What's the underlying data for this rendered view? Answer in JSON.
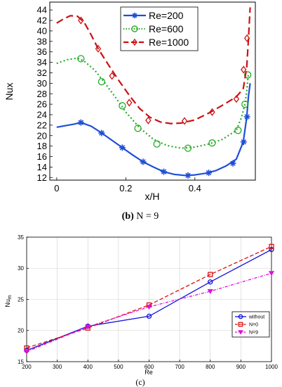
{
  "chart_data": [
    {
      "type": "line",
      "xlabel": "x/H",
      "ylabel": "Nux",
      "xlim": [
        -0.02,
        0.575
      ],
      "ylim": [
        11.5,
        45.5
      ],
      "xticks": [
        0,
        0.2,
        0.4
      ],
      "xtick_labels": [
        "0",
        "0.2",
        "0.4"
      ],
      "yticks": [
        12,
        14,
        16,
        18,
        20,
        22,
        24,
        26,
        28,
        30,
        32,
        34,
        36,
        38,
        40,
        42,
        44
      ],
      "ytick_labels": [
        "12",
        "14",
        "16",
        "18",
        "20",
        "22",
        "24",
        "26",
        "28",
        "30",
        "32",
        "34",
        "36",
        "38",
        "40",
        "42",
        "44"
      ],
      "legend_position": "top-right",
      "caption_prefix": "(b)",
      "caption_rest": " N = 9",
      "series": [
        {
          "name": "Re=200",
          "color": "#1f4fd8",
          "dash": "solid",
          "marker": "star",
          "x": [
            0.0,
            0.05,
            0.07,
            0.1,
            0.13,
            0.16,
            0.19,
            0.22,
            0.25,
            0.28,
            0.31,
            0.34,
            0.37,
            0.4,
            0.43,
            0.46,
            0.49,
            0.52,
            0.54,
            0.55,
            0.555,
            0.56
          ],
          "y": [
            21.6,
            22.2,
            22.5,
            21.8,
            20.5,
            19.1,
            17.7,
            16.3,
            15.0,
            14.0,
            13.1,
            12.6,
            12.4,
            12.5,
            12.8,
            13.3,
            14.2,
            15.5,
            18.8,
            23.5,
            27.5,
            30.0
          ],
          "marker_x": [
            0.07,
            0.13,
            0.19,
            0.25,
            0.31,
            0.38,
            0.44,
            0.51,
            0.541,
            0.551
          ],
          "marker_y": [
            22.5,
            20.5,
            17.7,
            15.0,
            13.1,
            12.4,
            12.9,
            14.7,
            18.8,
            23.6
          ]
        },
        {
          "name": "Re=600",
          "color": "#22aa22",
          "dash": "dotted",
          "marker": "circle",
          "x": [
            0.0,
            0.03,
            0.06,
            0.08,
            0.11,
            0.14,
            0.17,
            0.2,
            0.24,
            0.28,
            0.32,
            0.36,
            0.4,
            0.44,
            0.48,
            0.52,
            0.535,
            0.545,
            0.55,
            0.555
          ],
          "y": [
            33.8,
            34.5,
            34.8,
            34.2,
            32.5,
            30.0,
            27.3,
            24.5,
            21.5,
            19.3,
            18.1,
            17.6,
            17.8,
            18.4,
            19.3,
            21.0,
            23.5,
            26.0,
            28.5,
            32.0
          ],
          "marker_x": [
            0.07,
            0.13,
            0.19,
            0.235,
            0.29,
            0.38,
            0.45,
            0.525,
            0.545,
            0.553
          ],
          "marker_y": [
            34.7,
            30.3,
            25.7,
            21.4,
            18.4,
            17.6,
            18.6,
            21.0,
            26.0,
            31.6
          ]
        },
        {
          "name": "Re=1000",
          "color": "#cc1111",
          "dash": "dashed",
          "marker": "diamond",
          "x": [
            0.0,
            0.02,
            0.04,
            0.06,
            0.08,
            0.1,
            0.12,
            0.15,
            0.18,
            0.21,
            0.24,
            0.27,
            0.3,
            0.33,
            0.36,
            0.4,
            0.44,
            0.48,
            0.52,
            0.54,
            0.55,
            0.555,
            0.56
          ],
          "y": [
            41.5,
            42.3,
            42.9,
            42.8,
            41.6,
            39.2,
            36.6,
            33.5,
            30.5,
            27.7,
            25.2,
            23.5,
            22.6,
            22.3,
            22.4,
            23.0,
            24.3,
            25.8,
            27.4,
            29.0,
            33.0,
            38.5,
            44.5
          ],
          "marker_x": [
            0.07,
            0.12,
            0.16,
            0.21,
            0.265,
            0.37,
            0.45,
            0.52,
            0.541,
            0.551
          ],
          "marker_y": [
            42.0,
            36.6,
            31.4,
            26.3,
            22.9,
            22.8,
            24.5,
            27.0,
            32.6,
            38.6
          ]
        }
      ]
    },
    {
      "type": "line",
      "xlabel": "Re",
      "ylabel": "Nu",
      "ylabel_sub": "m",
      "xlim": [
        200,
        1000
      ],
      "ylim": [
        15,
        35
      ],
      "xticks": [
        200,
        300,
        400,
        500,
        600,
        700,
        800,
        900,
        1000
      ],
      "xtick_labels": [
        "200",
        "300",
        "400",
        "500",
        "600",
        "700",
        "800",
        "900",
        "1000"
      ],
      "yticks": [
        15,
        20,
        25,
        30,
        35
      ],
      "ytick_labels": [
        "15",
        "20",
        "25",
        "30",
        "35"
      ],
      "legend_position": "bottom-right",
      "caption": "(c)",
      "series": [
        {
          "name": "without",
          "color": "#1111dd",
          "dash": "solid",
          "marker": "circle",
          "x": [
            200,
            400,
            600,
            800,
            1000
          ],
          "y": [
            16.8,
            20.7,
            22.3,
            27.8,
            33.0
          ]
        },
        {
          "name": "N=0",
          "color": "#dd1111",
          "dash": "dashed",
          "marker": "square",
          "x": [
            200,
            400,
            600,
            800,
            1000
          ],
          "y": [
            17.2,
            20.4,
            24.1,
            29.0,
            33.5
          ]
        },
        {
          "name": "N=9",
          "color": "#dd11dd",
          "dash": "dashdot",
          "marker": "triangle-down",
          "x": [
            200,
            400,
            600,
            800,
            1000
          ],
          "y": [
            16.6,
            20.6,
            23.8,
            26.3,
            29.2
          ]
        }
      ]
    }
  ]
}
